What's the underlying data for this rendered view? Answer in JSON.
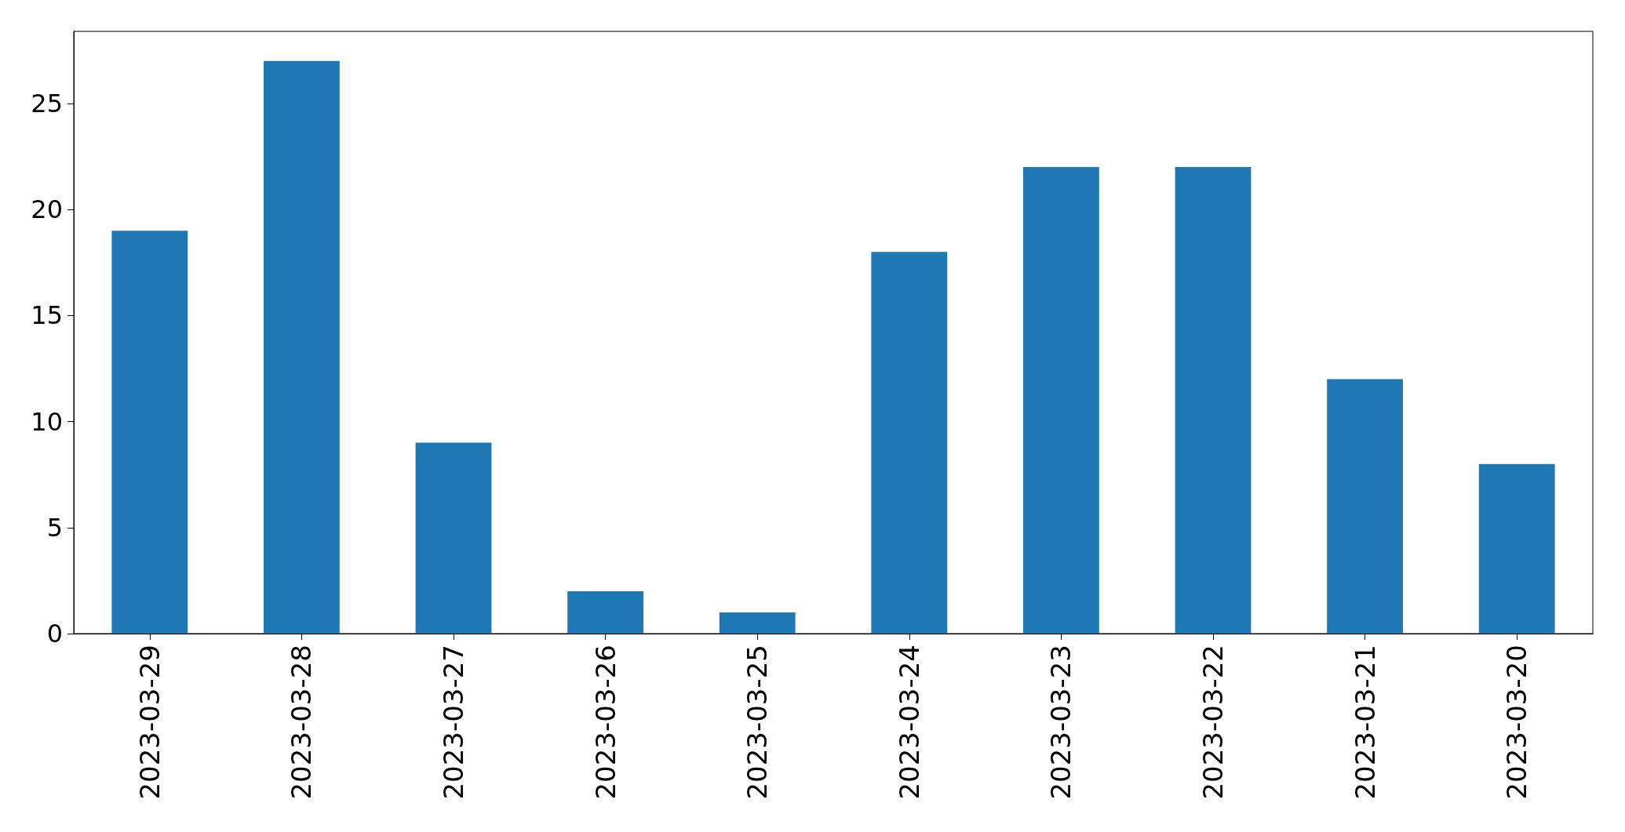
{
  "chart_data": {
    "type": "bar",
    "categories": [
      "2023-03-29",
      "2023-03-28",
      "2023-03-27",
      "2023-03-26",
      "2023-03-25",
      "2023-03-24",
      "2023-03-23",
      "2023-03-22",
      "2023-03-21",
      "2023-03-20"
    ],
    "values": [
      19,
      27,
      9,
      2,
      1,
      18,
      22,
      22,
      12,
      8
    ],
    "color": "#1f77b4",
    "ylim": [
      0,
      28.4
    ],
    "yticks": [
      0,
      5,
      10,
      15,
      20,
      25
    ],
    "grid": false
  }
}
